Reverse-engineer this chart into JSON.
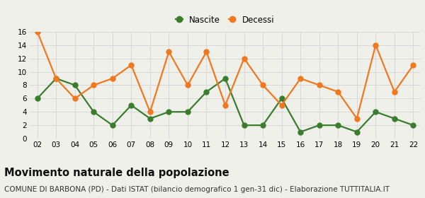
{
  "years": [
    "02",
    "03",
    "04",
    "05",
    "06",
    "07",
    "08",
    "09",
    "10",
    "11",
    "12",
    "13",
    "14",
    "15",
    "16",
    "17",
    "18",
    "19",
    "20",
    "21",
    "22"
  ],
  "nascite": [
    6,
    9,
    8,
    4,
    2,
    5,
    3,
    4,
    4,
    7,
    9,
    2,
    2,
    6,
    1,
    2,
    2,
    1,
    4,
    3,
    2
  ],
  "decessi": [
    16,
    9,
    6,
    8,
    9,
    11,
    4,
    13,
    8,
    13,
    5,
    12,
    8,
    5,
    9,
    8,
    7,
    3,
    14,
    7,
    11
  ],
  "nascite_color": "#3a7d2c",
  "decessi_color": "#f07820",
  "background_color": "#f0f0eb",
  "grid_color": "#d8d8d8",
  "ylim": [
    0,
    16
  ],
  "yticks": [
    0,
    2,
    4,
    6,
    8,
    10,
    12,
    14,
    16
  ],
  "legend_labels": [
    "Nascite",
    "Decessi"
  ],
  "title": "Movimento naturale della popolazione",
  "subtitle": "COMUNE DI BARBONA (PD) - Dati ISTAT (bilancio demografico 1 gen-31 dic) - Elaborazione TUTTITALIA.IT",
  "title_fontsize": 10.5,
  "subtitle_fontsize": 7.5,
  "marker_size": 5,
  "line_width": 1.6
}
